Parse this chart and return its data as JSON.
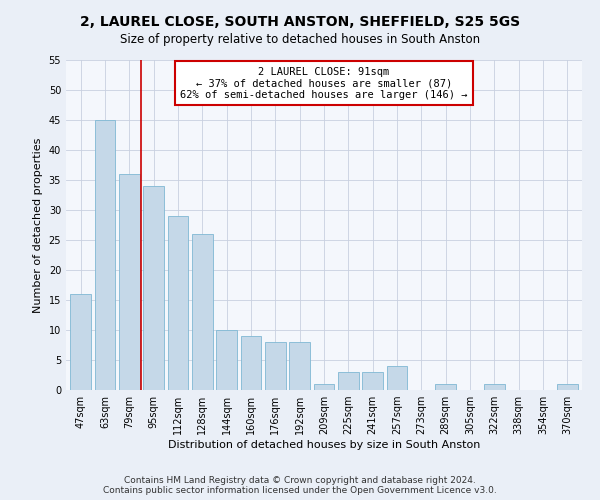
{
  "title": "2, LAUREL CLOSE, SOUTH ANSTON, SHEFFIELD, S25 5GS",
  "subtitle": "Size of property relative to detached houses in South Anston",
  "xlabel": "Distribution of detached houses by size in South Anston",
  "ylabel": "Number of detached properties",
  "categories": [
    "47sqm",
    "63sqm",
    "79sqm",
    "95sqm",
    "112sqm",
    "128sqm",
    "144sqm",
    "160sqm",
    "176sqm",
    "192sqm",
    "209sqm",
    "225sqm",
    "241sqm",
    "257sqm",
    "273sqm",
    "289sqm",
    "305sqm",
    "322sqm",
    "338sqm",
    "354sqm",
    "370sqm"
  ],
  "values": [
    16,
    45,
    36,
    34,
    29,
    26,
    10,
    9,
    8,
    8,
    1,
    3,
    3,
    4,
    0,
    1,
    0,
    1,
    0,
    0,
    1
  ],
  "bar_color": "#c5d8e8",
  "bar_edge_color": "#7fb8d4",
  "annotation_text": "2 LAUREL CLOSE: 91sqm\n← 37% of detached houses are smaller (87)\n62% of semi-detached houses are larger (146) →",
  "annotation_box_color": "#ffffff",
  "annotation_box_edge_color": "#cc0000",
  "vline_color": "#cc0000",
  "ylim": [
    0,
    55
  ],
  "yticks": [
    0,
    5,
    10,
    15,
    20,
    25,
    30,
    35,
    40,
    45,
    50,
    55
  ],
  "footer": "Contains HM Land Registry data © Crown copyright and database right 2024.\nContains public sector information licensed under the Open Government Licence v3.0.",
  "bg_color": "#eaeff7",
  "plot_bg_color": "#f4f7fc",
  "grid_color": "#c8d0e0",
  "title_fontsize": 10,
  "subtitle_fontsize": 8.5,
  "axis_label_fontsize": 8,
  "tick_fontsize": 7,
  "footer_fontsize": 6.5
}
